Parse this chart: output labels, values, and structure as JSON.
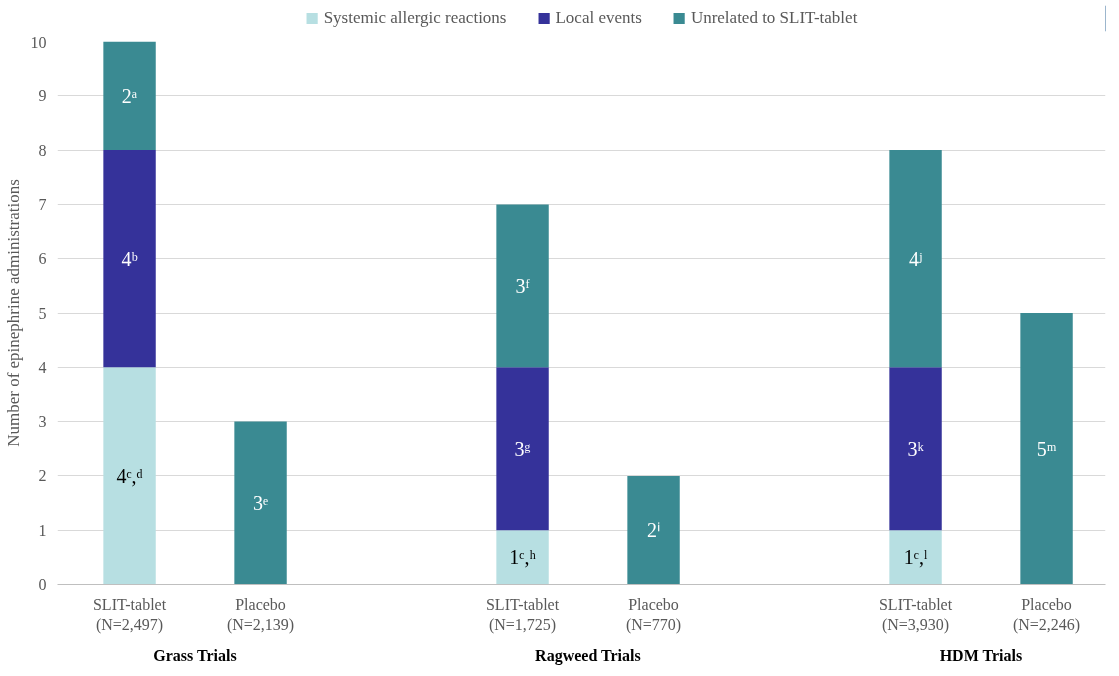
{
  "chart_data": {
    "type": "bar",
    "stacked": true,
    "categories": [
      "SLIT-tablet\n(N=2,497)",
      "Placebo\n(N=2,139)",
      null,
      "SLIT-tablet\n(N=1,725)",
      "Placebo\n(N=770)",
      null,
      "SLIT-tablet\n(N=3,930)",
      "Placebo\n(N=2,246)"
    ],
    "series": [
      {
        "name": "Systemic allergic reactions",
        "color": "#b7dfe2",
        "values": [
          4,
          null,
          null,
          1,
          null,
          null,
          1,
          null
        ],
        "value_labels": [
          "4ᶜ,ᵈ",
          null,
          null,
          "1ᶜ,ʰ",
          null,
          null,
          "1ᶜ,ˡ",
          null
        ]
      },
      {
        "name": "Local events",
        "color": "#35329a",
        "values": [
          4,
          null,
          null,
          3,
          null,
          null,
          3,
          null
        ],
        "value_labels": [
          "4ᵇ",
          null,
          null,
          "3ᵍ",
          null,
          null,
          "3ᵏ",
          null
        ]
      },
      {
        "name": "Unrelated to SLIT-tablet",
        "color": "#3a8a92",
        "values": [
          2,
          3,
          null,
          3,
          2,
          null,
          4,
          5
        ],
        "value_labels": [
          "2ᵃ",
          "3ᵉ",
          null,
          "3ᶠ",
          "2ⁱ",
          null,
          "4ʲ",
          "5ᵐ"
        ]
      }
    ],
    "ylabel": "Number of epinephrine administrations",
    "ylim": [
      0,
      10
    ],
    "yticks": [
      0,
      1,
      2,
      3,
      4,
      5,
      6,
      7,
      8,
      9,
      10
    ],
    "grid": "y",
    "legend": "top",
    "annotations": [
      "Grass Trials",
      "Ragweed Trials",
      "HDM Trials"
    ]
  }
}
